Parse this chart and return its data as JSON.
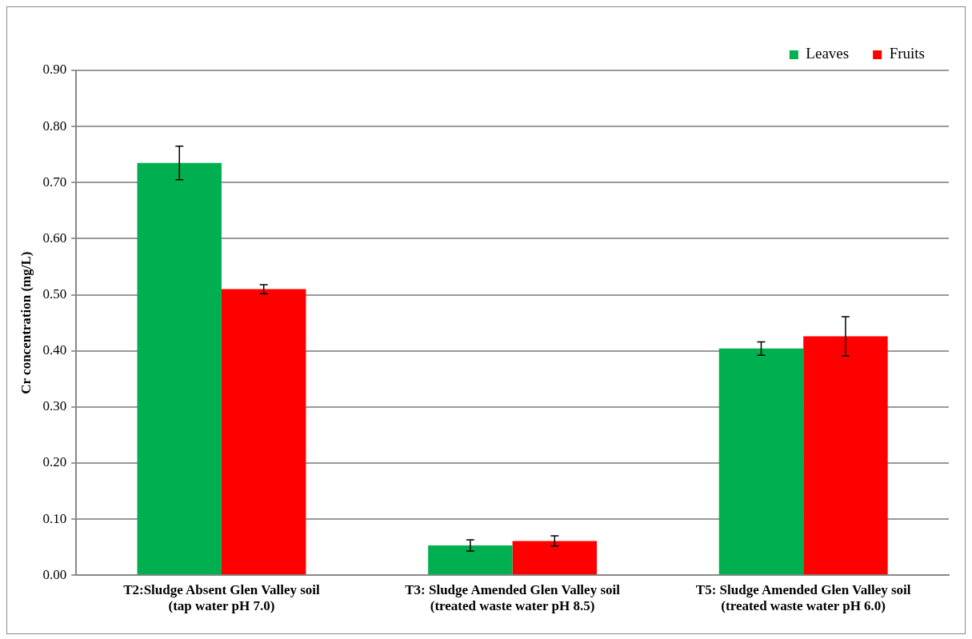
{
  "chart_data": {
    "type": "bar",
    "ylabel": "Cr concentration (mg/L)",
    "categories": [
      "T2:Sludge Absent Glen Valley soil\n(tap water pH 7.0)",
      "T3: Sludge Amended Glen Valley soil\n(treated waste water pH 8.5)",
      "T5: Sludge Amended Glen Valley soil\n(treated waste water pH 6.0)"
    ],
    "series": [
      {
        "name": "Leaves",
        "color": "#00b050",
        "values": [
          0.735,
          0.053,
          0.404
        ],
        "errors": [
          0.03,
          0.01,
          0.012
        ]
      },
      {
        "name": "Fruits",
        "color": "#ff0000",
        "values": [
          0.51,
          0.061,
          0.426
        ],
        "errors": [
          0.008,
          0.009,
          0.035
        ]
      }
    ],
    "ylim": [
      0,
      0.9
    ],
    "yticks": [
      {
        "value": 0,
        "label": "0.00"
      },
      {
        "value": 0.1,
        "label": "0.10"
      },
      {
        "value": 0.2,
        "label": "0.20"
      },
      {
        "value": 0.3,
        "label": "0.30"
      },
      {
        "value": 0.4,
        "label": "0.40"
      },
      {
        "value": 0.5,
        "label": "0.50"
      },
      {
        "value": 0.6,
        "label": "0.60"
      },
      {
        "value": 0.7,
        "label": "0.70"
      },
      {
        "value": 0.8,
        "label": "0.80"
      },
      {
        "value": 0.9,
        "label": "0.90"
      }
    ],
    "grid": "y",
    "legend": "top right"
  }
}
